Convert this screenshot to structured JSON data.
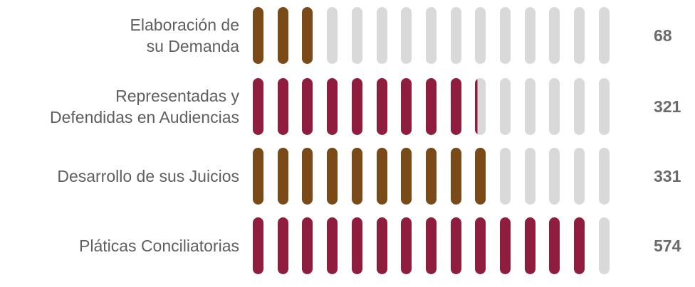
{
  "chart_data": {
    "type": "bar",
    "pills_per_row": 15,
    "categories": [
      [
        "Elaboración de",
        "su Demanda"
      ],
      [
        "Representadas y",
        "Defendidas en Audiencias"
      ],
      [
        "Desarrollo de sus Juicios"
      ],
      [
        "Pláticas Conciliatorias"
      ]
    ],
    "values": [
      "68",
      "321",
      "331",
      "574"
    ],
    "filled_pills": [
      3,
      9.25,
      10,
      14
    ],
    "colors": [
      "#7a4a18",
      "#8f1d3d",
      "#7a4a18",
      "#8f1d3d"
    ],
    "empty_color": "#d9d9d9"
  }
}
